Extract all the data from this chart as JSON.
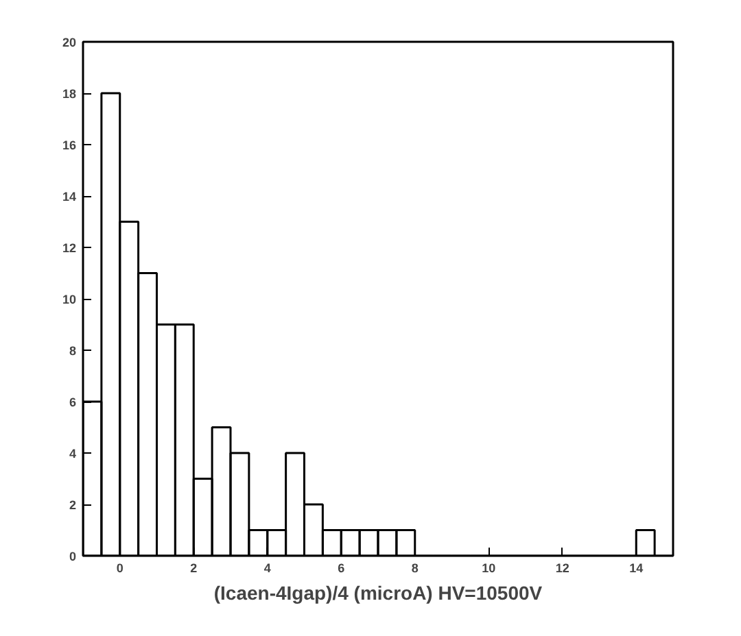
{
  "chart_data": {
    "type": "histogram",
    "xlabel": "(Icaen-4Igap)/4 (microA) HV=10500V",
    "bins": [
      -1,
      -0.5,
      0,
      0.5,
      1,
      1.5,
      2,
      2.5,
      3,
      3.5,
      4,
      4.5,
      5,
      5.5,
      6,
      6.5,
      7,
      7.5,
      8,
      8.5,
      9,
      9.5,
      10,
      10.5,
      11,
      11.5,
      12,
      12.5,
      13,
      13.5,
      14,
      14.5,
      15
    ],
    "values": [
      6,
      18,
      13,
      11,
      9,
      9,
      3,
      5,
      4,
      1,
      1,
      4,
      2,
      1,
      1,
      1,
      1,
      1,
      0,
      0,
      0,
      0,
      0,
      0,
      0,
      0,
      0,
      0,
      0,
      0,
      1,
      0
    ],
    "color": "#000000",
    "xlim": [
      -1,
      15
    ],
    "ylim": [
      0,
      20
    ],
    "xticks": [
      0,
      2,
      4,
      6,
      8,
      10,
      12,
      14
    ],
    "yticks": [
      0,
      2,
      4,
      6,
      8,
      10,
      12,
      14,
      16,
      18,
      20
    ],
    "grid": false
  }
}
